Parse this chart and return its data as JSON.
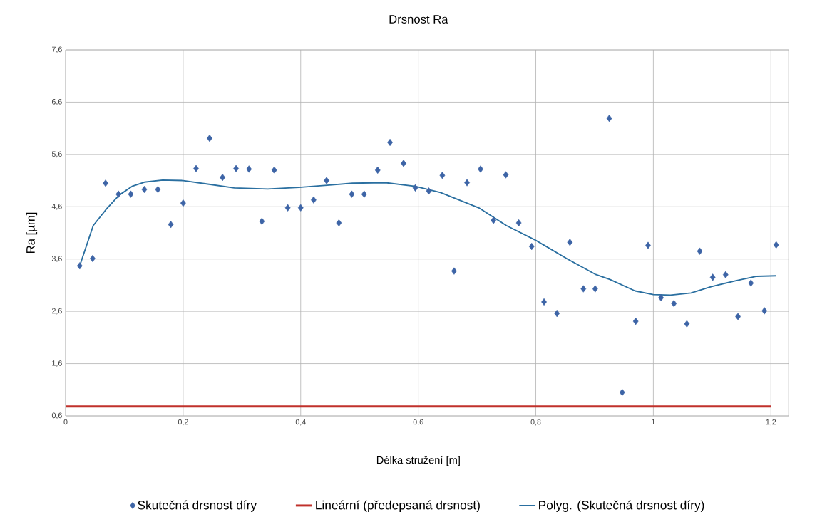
{
  "chart_data": {
    "type": "scatter",
    "title": "Drsnost Ra",
    "xlabel": "Délka stružení [m]",
    "ylabel": "Ra  [µm]",
    "xlim": [
      0,
      1.23
    ],
    "ylim": [
      0.6,
      7.6
    ],
    "xticks": [
      0,
      {
        "value": 0.2,
        "label": "0,2"
      },
      {
        "value": 0.4,
        "label": "0,4"
      },
      {
        "value": 0.6,
        "label": "0,6"
      },
      {
        "value": 0.8,
        "label": "0,8"
      },
      1,
      {
        "value": 1.2,
        "label": "1,2"
      }
    ],
    "yticks": [
      {
        "value": 0.6,
        "label": "0,6"
      },
      {
        "value": 1.6,
        "label": "1,6"
      },
      {
        "value": 2.6,
        "label": "2,6"
      },
      {
        "value": 3.6,
        "label": "3,6"
      },
      {
        "value": 4.6,
        "label": "4,6"
      },
      {
        "value": 5.6,
        "label": "5,6"
      },
      {
        "value": 6.6,
        "label": "6,6"
      },
      {
        "value": 7.6,
        "label": "7,6"
      }
    ],
    "grid": true,
    "legend": "bottom",
    "series": [
      {
        "name": "Skutečná drsnost díry",
        "marker": "diamond",
        "color": "#3d64a6",
        "x": [
          0.024,
          0.046,
          0.068,
          0.09,
          0.111,
          0.134,
          0.157,
          0.179,
          0.2,
          0.222,
          0.245,
          0.267,
          0.29,
          0.312,
          0.334,
          0.355,
          0.378,
          0.4,
          0.422,
          0.444,
          0.465,
          0.487,
          0.508,
          0.531,
          0.552,
          0.575,
          0.595,
          0.618,
          0.641,
          0.661,
          0.683,
          0.706,
          0.728,
          0.749,
          0.771,
          0.793,
          0.814,
          0.836,
          0.858,
          0.881,
          0.901,
          0.925,
          0.947,
          0.97,
          0.991,
          1.013,
          1.035,
          1.057,
          1.079,
          1.101,
          1.123,
          1.144,
          1.166,
          1.189,
          1.209
        ],
        "values": [
          3.47,
          3.61,
          5.05,
          4.84,
          4.84,
          4.93,
          4.93,
          4.26,
          4.67,
          5.33,
          5.91,
          5.16,
          5.33,
          5.32,
          4.32,
          5.3,
          4.58,
          4.58,
          4.73,
          5.1,
          4.29,
          4.84,
          4.84,
          5.3,
          5.83,
          5.43,
          4.96,
          4.9,
          5.2,
          3.37,
          5.06,
          5.32,
          4.34,
          5.21,
          4.29,
          3.84,
          2.78,
          2.56,
          3.92,
          3.03,
          3.03,
          6.29,
          1.05,
          2.41,
          3.86,
          2.86,
          2.75,
          2.36,
          3.75,
          3.25,
          3.3,
          2.5,
          3.14,
          2.61,
          3.87
        ]
      },
      {
        "name": "Lineární (předepsaná drsnost)",
        "type": "line",
        "marker": "none",
        "color": "#c0312b",
        "x": [
          0,
          1.2
        ],
        "values": [
          0.78,
          0.78
        ]
      },
      {
        "name": "Polyg. (Skutečná drsnost díry)",
        "type": "line",
        "marker": "none",
        "color": "#2a6fa0",
        "x": [
          0.024,
          0.047,
          0.069,
          0.091,
          0.113,
          0.134,
          0.165,
          0.2,
          0.244,
          0.287,
          0.344,
          0.397,
          0.445,
          0.488,
          0.544,
          0.595,
          0.638,
          0.703,
          0.75,
          0.798,
          0.854,
          0.901,
          0.926,
          0.969,
          1.0,
          1.029,
          1.064,
          1.098,
          1.142,
          1.176,
          1.209
        ],
        "values": [
          3.47,
          4.24,
          4.55,
          4.82,
          4.99,
          5.07,
          5.11,
          5.1,
          5.03,
          4.96,
          4.94,
          4.97,
          5.01,
          5.05,
          5.06,
          4.99,
          4.87,
          4.58,
          4.24,
          3.97,
          3.6,
          3.31,
          3.21,
          2.99,
          2.92,
          2.91,
          2.95,
          3.07,
          3.19,
          3.27,
          3.28
        ]
      }
    ]
  }
}
